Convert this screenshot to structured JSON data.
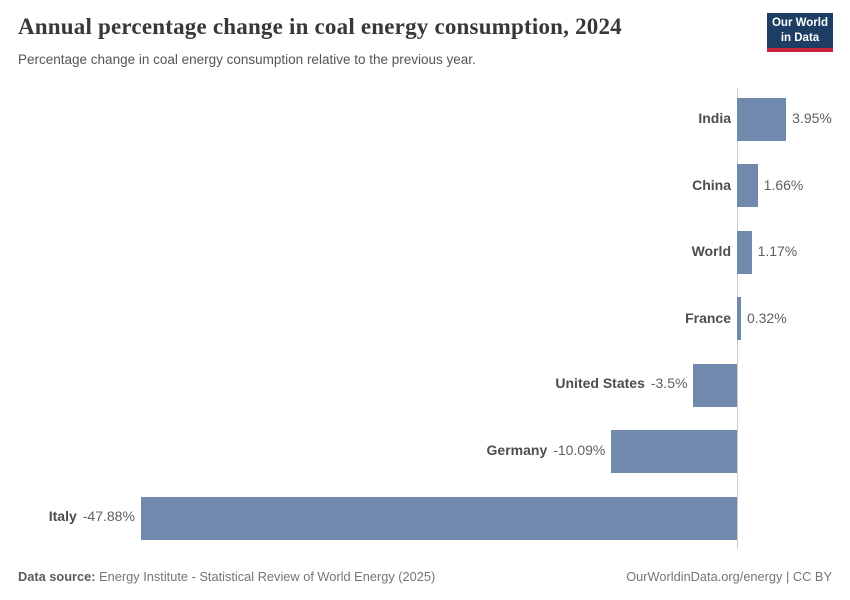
{
  "header": {
    "title": "Annual percentage change in coal energy consumption, 2024",
    "subtitle": "Percentage change in coal energy consumption relative to the previous year.",
    "logo": {
      "line1": "Our World",
      "line2": "in Data",
      "bg_color": "#1d3d63",
      "accent_color": "#c7263a"
    }
  },
  "chart_data": {
    "type": "bar",
    "orientation": "horizontal",
    "title": "Annual percentage change in coal energy consumption, 2024",
    "subtitle": "Percentage change in coal energy consumption relative to the previous year.",
    "xlabel": "",
    "ylabel": "",
    "unit": "%",
    "categories": [
      "India",
      "China",
      "World",
      "France",
      "United States",
      "Germany",
      "Italy"
    ],
    "values": [
      3.95,
      1.66,
      1.17,
      0.32,
      -3.5,
      -10.09,
      -47.88
    ],
    "value_labels": [
      "3.95%",
      "1.66%",
      "1.17%",
      "0.32%",
      "-3.5%",
      "-10.09%",
      "-47.88%"
    ],
    "xlim": [
      -47.88,
      3.95
    ],
    "grid": false,
    "legend": null,
    "bar_color": "#7089ac",
    "axis_color": "#cccccc"
  },
  "footer": {
    "datasource_label": "Data source:",
    "datasource_text": " Energy Institute - Statistical Review of World Energy (2025)",
    "right_text": "OurWorldinData.org/energy | CC BY"
  }
}
